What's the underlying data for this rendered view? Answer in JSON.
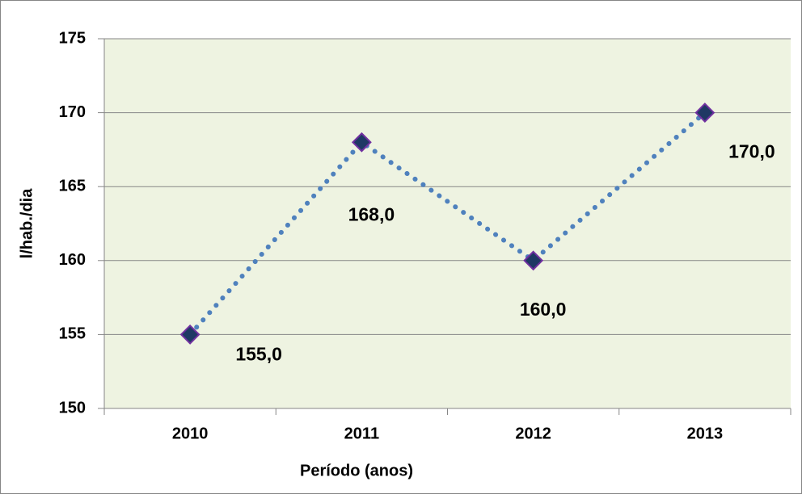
{
  "chart_data": {
    "type": "line",
    "categories": [
      "2010",
      "2011",
      "2012",
      "2013"
    ],
    "values": [
      155,
      168,
      160,
      170
    ],
    "value_labels": [
      "155,0",
      "168,0",
      "160,0",
      "170,0"
    ],
    "color": "#4f81bd",
    "marker_color": "#1f3864",
    "marker_edge": "#7030a0",
    "ylim": [
      150,
      175
    ],
    "yticks": [
      150,
      155,
      160,
      165,
      170,
      175
    ],
    "grid": true,
    "xlabel": "Período (anos)",
    "ylabel": "l/hab./dia"
  }
}
